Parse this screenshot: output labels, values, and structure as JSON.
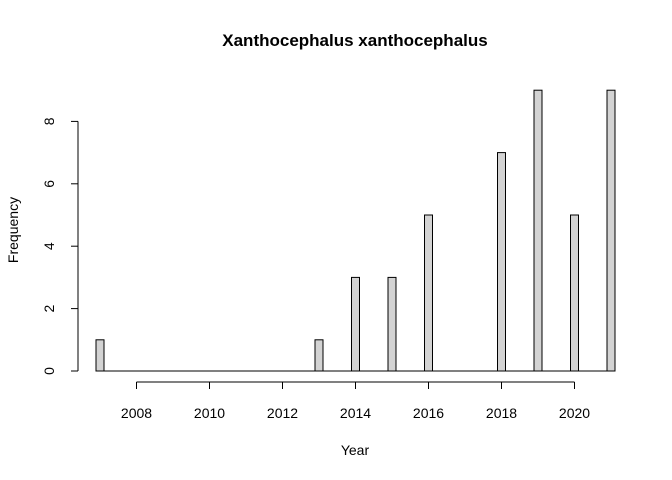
{
  "chart_data": {
    "type": "bar",
    "title": "Xanthocephalus xanthocephalus",
    "xlabel": "Year",
    "ylabel": "Frequency",
    "x": [
      2007,
      2008,
      2009,
      2010,
      2011,
      2012,
      2013,
      2014,
      2015,
      2016,
      2017,
      2018,
      2019,
      2020,
      2021
    ],
    "values": [
      1,
      0,
      0,
      0,
      0,
      0,
      1,
      3,
      3,
      5,
      0,
      7,
      9,
      5,
      9
    ],
    "xlim": [
      2007,
      2021
    ],
    "ylim": [
      0,
      9
    ],
    "x_ticks": [
      "2008",
      "2010",
      "2012",
      "2014",
      "2016",
      "2018",
      "2020"
    ],
    "y_ticks": [
      "0",
      "2",
      "4",
      "6",
      "8"
    ],
    "bar_color": "#d3d3d3",
    "grid": false
  }
}
